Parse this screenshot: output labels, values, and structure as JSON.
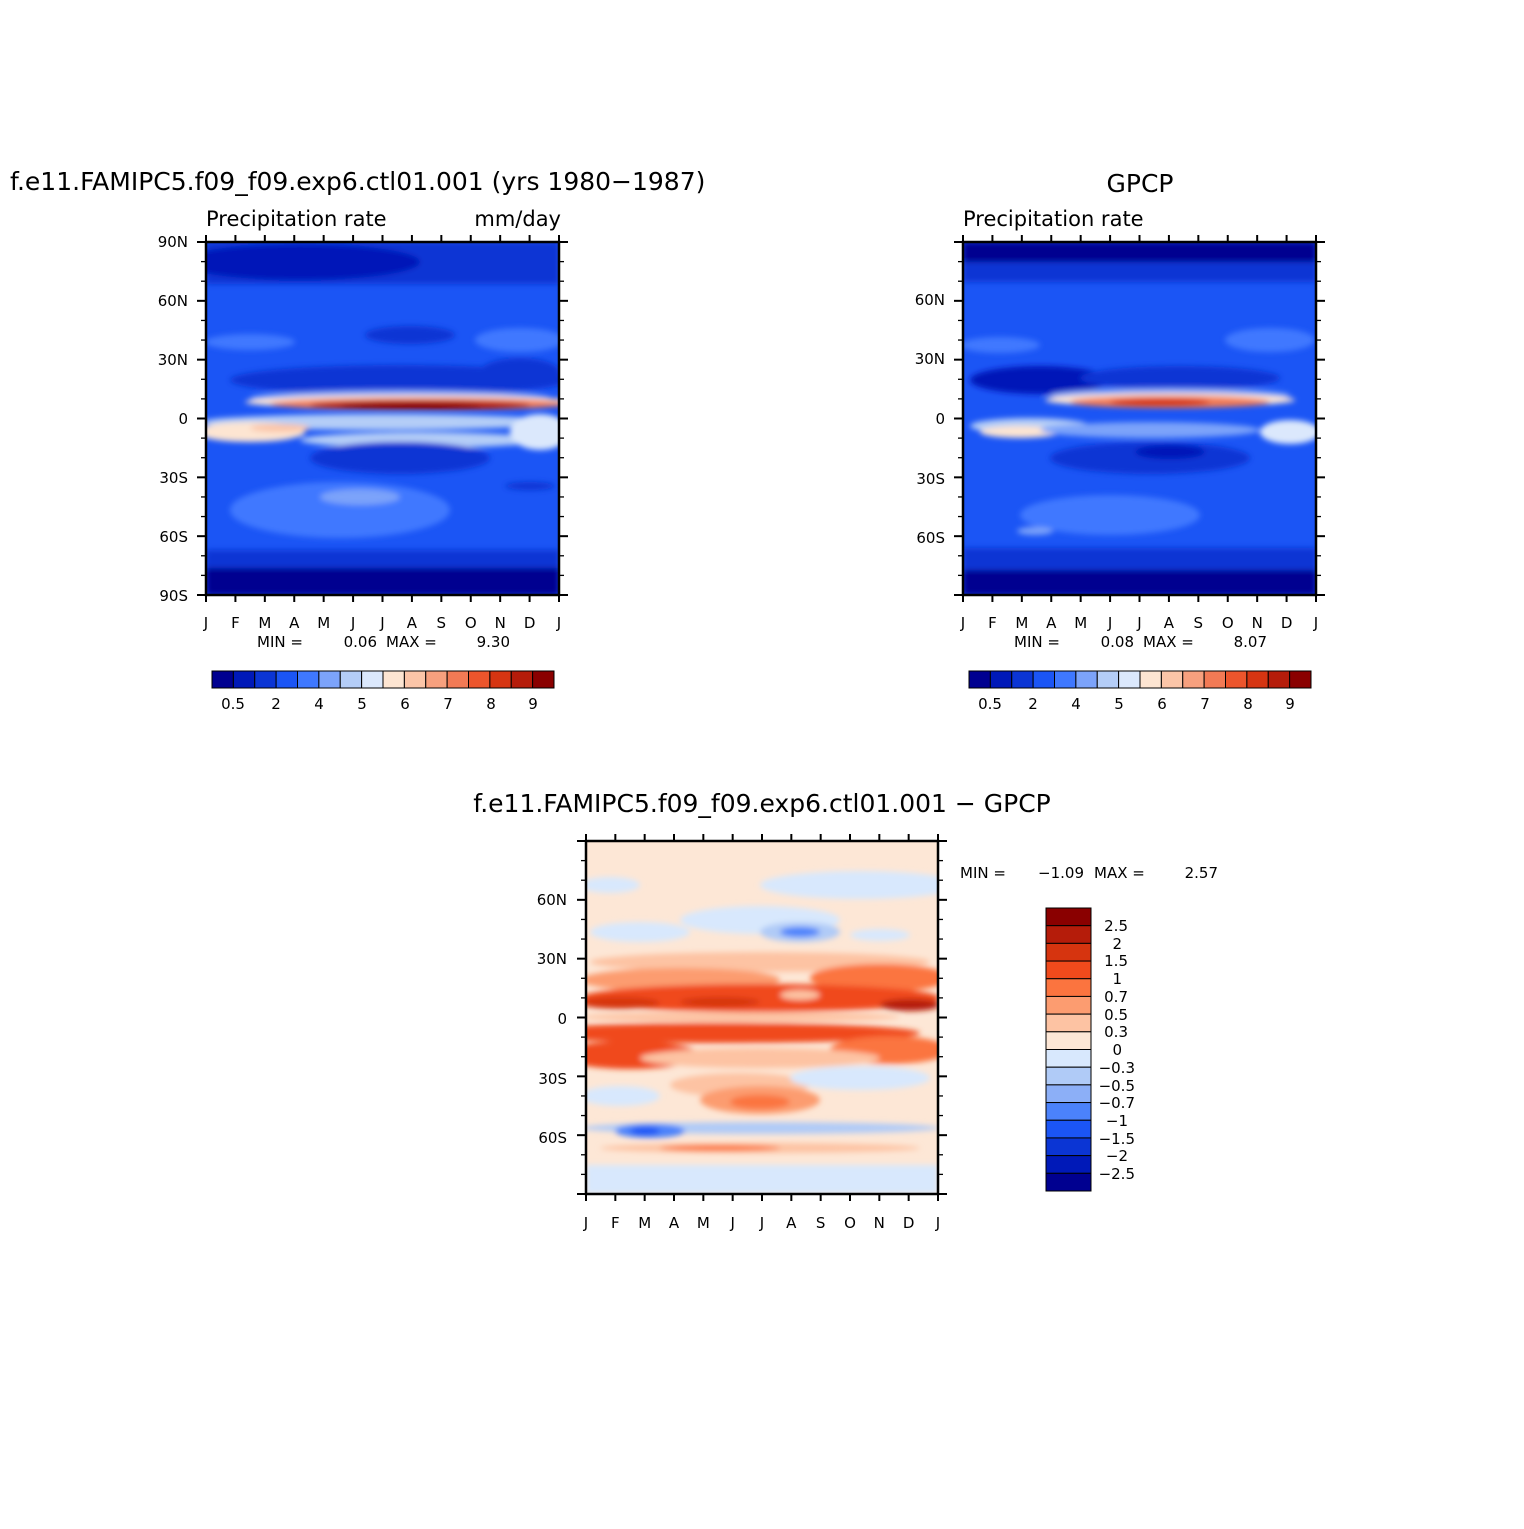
{
  "chart_data": [
    {
      "type": "heatmap",
      "title": "f.e11.FAMIPC5.f09_f09.exp6.ctl01.001 (yrs 1980-1987)",
      "subtitle": "Precipitation rate",
      "units": "mm/day",
      "x_ticks": [
        "J",
        "F",
        "M",
        "A",
        "M",
        "J",
        "J",
        "A",
        "S",
        "O",
        "N",
        "D",
        "J"
      ],
      "y_ticks": [
        "90N",
        "60N",
        "30N",
        "0",
        "30S",
        "60S",
        "90S"
      ],
      "min_label": "MIN =",
      "min_value": "0.06",
      "max_label": "MAX =",
      "max_value": "9.30",
      "colorbar_labels": [
        "0.5",
        "2",
        "4",
        "5",
        "6",
        "7",
        "8",
        "9"
      ],
      "xlim": [
        0,
        12
      ],
      "ylim": [
        -90,
        90
      ]
    },
    {
      "type": "heatmap",
      "title": "GPCP",
      "subtitle": "Precipitation rate",
      "x_ticks": [
        "J",
        "F",
        "M",
        "A",
        "M",
        "J",
        "J",
        "A",
        "S",
        "O",
        "N",
        "D",
        "J"
      ],
      "y_ticks": [
        "60N",
        "30N",
        "0",
        "30S",
        "60S"
      ],
      "min_label": "MIN =",
      "min_value": "0.08",
      "max_label": "MAX =",
      "max_value": "8.07",
      "colorbar_labels": [
        "0.5",
        "2",
        "4",
        "5",
        "6",
        "7",
        "8",
        "9"
      ],
      "xlim": [
        0,
        12
      ],
      "ylim": [
        -90,
        90
      ]
    },
    {
      "type": "heatmap",
      "title": "f.e11.FAMIPC5.f09_f09.exp6.ctl01.001 - GPCP",
      "x_ticks": [
        "J",
        "F",
        "M",
        "A",
        "M",
        "J",
        "J",
        "A",
        "S",
        "O",
        "N",
        "D",
        "J"
      ],
      "y_ticks": [
        "60N",
        "30N",
        "0",
        "30S",
        "60S"
      ],
      "min_label": "MIN =",
      "min_value": "-1.09",
      "max_label": "MAX =",
      "max_value": "2.57",
      "colorbar_labels": [
        "2.5",
        "2",
        "1.5",
        "1",
        "0.7",
        "0.5",
        "0.3",
        "0",
        "-0.3",
        "-0.5",
        "-0.7",
        "-1",
        "-1.5",
        "-2",
        "-2.5"
      ],
      "xlim": [
        0,
        12
      ],
      "ylim": [
        -90,
        90
      ]
    }
  ],
  "colors": {
    "seq_colorbar": [
      "#000090",
      "#0019b8",
      "#0b35d4",
      "#1b55f5",
      "#3f78ff",
      "#7ca3fa",
      "#b4cdf7",
      "#dbe8fc",
      "#fde5d2",
      "#fbc5a8",
      "#f7a07e",
      "#f27a55",
      "#ec552c",
      "#d63512",
      "#b51c0a",
      "#8a0000"
    ],
    "diff_colorbar": [
      "#8a0000",
      "#b51c0a",
      "#d6340f",
      "#f04a1c",
      "#fb743f",
      "#fc9c70",
      "#fdc3a3",
      "#fde7d6",
      "#d8e8fd",
      "#b0cbf7",
      "#8caff7",
      "#4b82fb",
      "#1b55f5",
      "#0b35d4",
      "#0019b8",
      "#000090"
    ]
  }
}
